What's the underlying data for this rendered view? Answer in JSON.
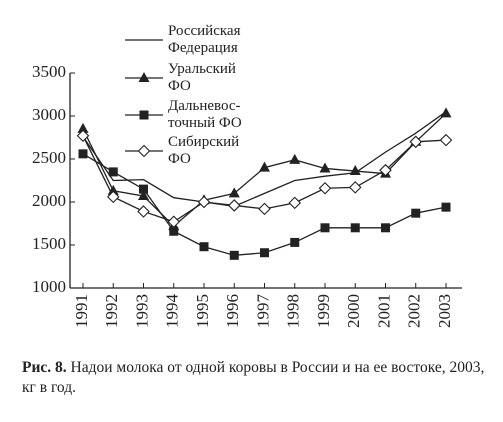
{
  "chart_data": {
    "type": "line",
    "categories": [
      "1991",
      "1992",
      "1993",
      "1994",
      "1995",
      "1996",
      "1997",
      "1998",
      "1999",
      "2000",
      "2001",
      "2002",
      "2003"
    ],
    "series": [
      {
        "name": "Российская\nФедерация",
        "color": "#222",
        "marker": "none",
        "values": [
          2760,
          2250,
          2260,
          2050,
          2000,
          1950,
          2100,
          2250,
          2300,
          2340,
          2580,
          2800,
          3050
        ]
      },
      {
        "name": "Уральский\nФО",
        "color": "#222",
        "marker": "triangle",
        "values": [
          2850,
          2130,
          2070,
          1720,
          2020,
          2100,
          2400,
          2490,
          2390,
          2360,
          2330,
          2700,
          3030
        ]
      },
      {
        "name": "Дальневос-\nточный ФО",
        "color": "#222",
        "marker": "square",
        "values": [
          2560,
          2350,
          2150,
          1660,
          1480,
          1380,
          1410,
          1530,
          1700,
          1700,
          1700,
          1870,
          1940
        ]
      },
      {
        "name": "Сибирский\nФО",
        "color": "#222",
        "marker": "diamond",
        "values": [
          2770,
          2060,
          1890,
          1770,
          2000,
          1960,
          1920,
          1990,
          2160,
          2170,
          2370,
          2700,
          2720
        ]
      }
    ],
    "ylim": [
      1000,
      3500
    ],
    "yticks": [
      1000,
      1500,
      2000,
      2500,
      3000,
      3500
    ],
    "grid": false,
    "caption_label": "Рис. 8.",
    "caption": "Надои молока от одной коровы в России и на ее востоке, 2003, кг в год."
  }
}
